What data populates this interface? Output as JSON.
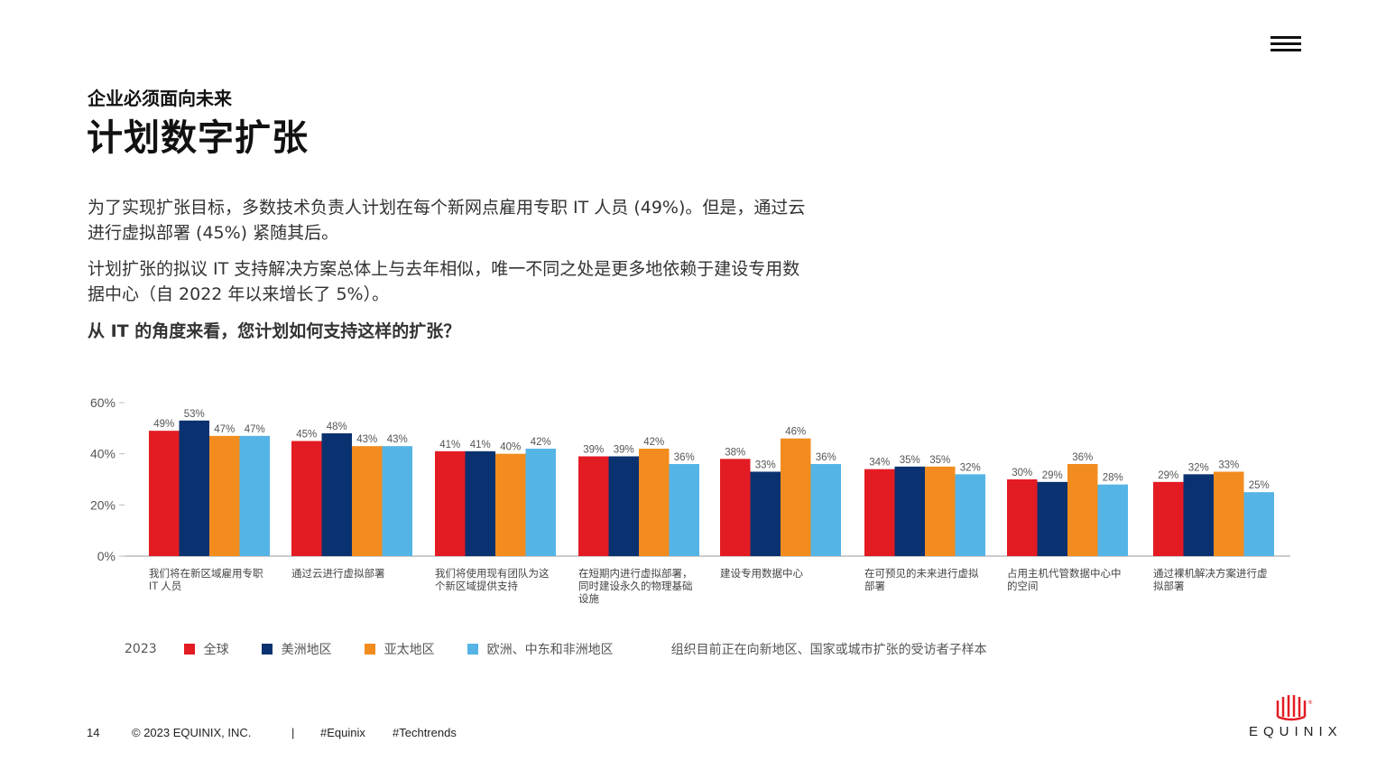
{
  "header": {
    "subtitle": "企业必须面向未来",
    "title": "计划数字扩张"
  },
  "body": {
    "paragraph1": "为了实现扩张目标，多数技术负责人计划在每个新网点雇用专职 IT 人员 (49%)。但是，通过云进行虚拟部署 (45%) 紧随其后。",
    "paragraph2": "计划扩张的拟议 IT 支持解决方案总体上与去年相似，唯一不同之处是更多地依赖于建设专用数据中心（自 2022 年以来增长了 5%）。",
    "question": "从 IT 的角度来看，您计划如何支持这样的扩张？"
  },
  "chart_data": {
    "type": "bar",
    "ylim": [
      0,
      60
    ],
    "yticks": [
      "0%",
      "20%",
      "40%",
      "60%"
    ],
    "grid": false,
    "categories": [
      [
        "我们将在新区域雇用专职",
        "IT 人员"
      ],
      [
        "通过云进行虚拟部署"
      ],
      [
        "我们将使用现有团队为这",
        "个新区域提供支持"
      ],
      [
        "在短期内进行虚拟部署，",
        "同时建设永久的物理基础",
        "设施"
      ],
      [
        "建设专用数据中心"
      ],
      [
        "在可预见的未来进行虚拟",
        "部署"
      ],
      [
        "占用主机代管数据中心中",
        "的空间"
      ],
      [
        "通过裸机解决方案进行虚",
        "拟部署"
      ]
    ],
    "series": [
      {
        "name": "全球",
        "color": "#e31b23",
        "values": [
          49,
          45,
          41,
          39,
          38,
          34,
          30,
          29
        ]
      },
      {
        "name": "美洲地区",
        "color": "#0b3270",
        "values": [
          53,
          48,
          41,
          39,
          33,
          35,
          29,
          32
        ]
      },
      {
        "name": "亚太地区",
        "color": "#f28c1e",
        "values": [
          47,
          43,
          40,
          42,
          46,
          35,
          36,
          33
        ]
      },
      {
        "name": "欧洲、中东和非洲地区",
        "color": "#55b4e6",
        "values": [
          47,
          43,
          42,
          36,
          36,
          32,
          28,
          25
        ]
      }
    ]
  },
  "legend": {
    "year": "2023",
    "note": "组织目前正在向新地区、国家或城市扩张的受访者子样本"
  },
  "footer": {
    "page": "14",
    "copyright": "© 2023 EQUINIX, INC.",
    "separator": "|",
    "tag1": "#Equinix",
    "tag2": "#Techtrends"
  },
  "logo": {
    "text": "EQUINIX",
    "registered": "®"
  },
  "icons": {
    "menu": "hamburger-menu-icon"
  }
}
